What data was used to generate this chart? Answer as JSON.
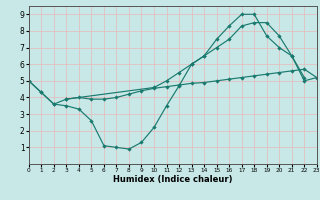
{
  "xlabel": "Humidex (Indice chaleur)",
  "xlim": [
    0,
    23
  ],
  "ylim": [
    0,
    9.5
  ],
  "xticks": [
    0,
    1,
    2,
    3,
    4,
    5,
    6,
    7,
    8,
    9,
    10,
    11,
    12,
    13,
    14,
    15,
    16,
    17,
    18,
    19,
    20,
    21,
    22,
    23
  ],
  "yticks": [
    1,
    2,
    3,
    4,
    5,
    6,
    7,
    8,
    9
  ],
  "bg_color": "#c8e8e8",
  "grid_color": "#e8b8b8",
  "line_color": "#1a7a6e",
  "line1_x": [
    0,
    1,
    2,
    3,
    4,
    5,
    6,
    7,
    8,
    9,
    10,
    11,
    12,
    13,
    14,
    15,
    16,
    17,
    18,
    19,
    20,
    21,
    22
  ],
  "line1_y": [
    5.0,
    4.3,
    3.6,
    3.5,
    3.3,
    2.6,
    1.1,
    1.0,
    0.9,
    1.3,
    2.2,
    3.5,
    4.7,
    6.0,
    6.5,
    7.5,
    8.3,
    9.0,
    9.0,
    7.7,
    7.0,
    6.5,
    5.2
  ],
  "line2_x": [
    0,
    1,
    2,
    3,
    4,
    5,
    6,
    7,
    8,
    9,
    10,
    11,
    12,
    13,
    14,
    15,
    16,
    17,
    18,
    19,
    20,
    21,
    22,
    23
  ],
  "line2_y": [
    5.0,
    4.3,
    3.6,
    3.9,
    4.0,
    3.9,
    3.9,
    4.0,
    4.2,
    4.4,
    4.55,
    4.65,
    4.75,
    4.85,
    4.9,
    5.0,
    5.1,
    5.2,
    5.3,
    5.4,
    5.5,
    5.6,
    5.7,
    5.2
  ],
  "line3_x": [
    3,
    10,
    11,
    12,
    13,
    14,
    15,
    16,
    17,
    18,
    19,
    20,
    21,
    22,
    23
  ],
  "line3_y": [
    3.9,
    4.6,
    5.0,
    5.5,
    6.0,
    6.5,
    7.0,
    7.5,
    8.3,
    8.5,
    8.5,
    7.7,
    6.5,
    5.0,
    5.2
  ]
}
